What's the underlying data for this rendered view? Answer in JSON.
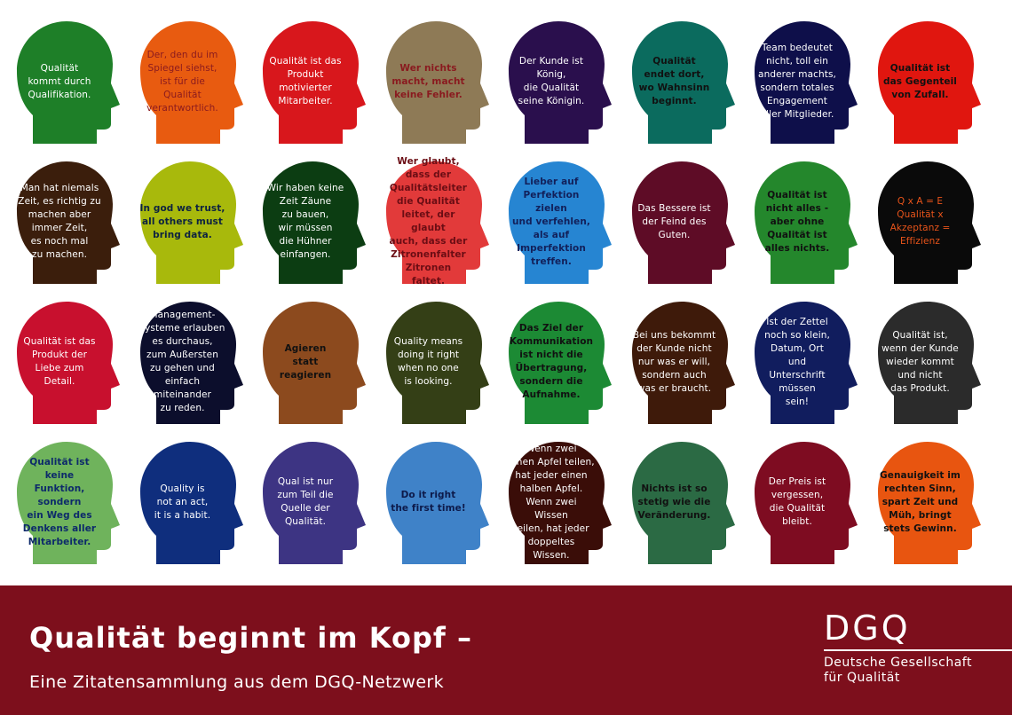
{
  "heads": [
    {
      "text": "Qualität\nkommt durch\nQualifikation.",
      "bg": "#1e7f28",
      "fg": "#ffffff",
      "bold": false
    },
    {
      "text": "Der, den du im\nSpiegel siehst,\nist für die\nQualität\nverantwortlich.",
      "bg": "#e85b10",
      "fg": "#8a1a1f",
      "bold": false
    },
    {
      "text": "Qualität ist das\nProdukt\nmotivierter\nMitarbeiter.",
      "bg": "#d8171c",
      "fg": "#ffffff",
      "bold": false
    },
    {
      "text": "Wer nichts\nmacht, macht\nkeine Fehler.",
      "bg": "#8e7a56",
      "fg": "#8a1a1f",
      "bold": true
    },
    {
      "text": "Der Kunde ist\nKönig,\ndie Qualität\nseine Königin.",
      "bg": "#2a0f4d",
      "fg": "#ffffff",
      "bold": false
    },
    {
      "text": "Qualität\nendet dort,\nwo Wahnsinn\nbeginnt.",
      "bg": "#0b6b5e",
      "fg": "#111111",
      "bold": true
    },
    {
      "text": "Team bedeutet\nnicht, toll ein\nanderer machts,\nsondern totales\nEngagement\naller Mitglieder.",
      "bg": "#0e0f4a",
      "fg": "#ffffff",
      "bold": false
    },
    {
      "text": "Qualität ist\ndas Gegenteil\nvon Zufall.",
      "bg": "#e0160f",
      "fg": "#111111",
      "bold": true
    },
    {
      "text": "Man hat niemals\nZeit, es richtig zu\nmachen aber\nimmer Zeit,\nes noch mal\nzu machen.",
      "bg": "#3b1e0c",
      "fg": "#ffffff",
      "bold": false
    },
    {
      "text": "In god we trust,\nall others must\nbring data.",
      "bg": "#a8b90c",
      "fg": "#0d2240",
      "bold": true
    },
    {
      "text": "Wir haben keine\nZeit Zäune\nzu bauen,\nwir müssen\ndie Hühner\neinfangen.",
      "bg": "#0c3d12",
      "fg": "#ffffff",
      "bold": false
    },
    {
      "text": "Wer glaubt,\ndass der\nQualitätsleiter\ndie Qualität\nleitet, der glaubt\nauch, dass der\nZitronenfalter\nZitronen\nfaltet.",
      "bg": "#e23a3a",
      "fg": "#6b0d14",
      "bold": true
    },
    {
      "text": "Lieber auf\nPerfektion zielen\nund verfehlen,\nals auf\nImperfektion\ntreffen.",
      "bg": "#2685d2",
      "fg": "#12205a",
      "bold": true
    },
    {
      "text": "Das Bessere ist\nder Feind des\nGuten.",
      "bg": "#5e0c26",
      "fg": "#ffffff",
      "bold": false
    },
    {
      "text": "Qualität ist\nnicht alles -\naber ohne\nQualität ist\nalles nichts.",
      "bg": "#24872c",
      "fg": "#111111",
      "bold": true
    },
    {
      "text": "Q x A = E\nQualität x\nAkzeptanz =\nEffizienz",
      "bg": "#0a0a0a",
      "fg": "#e8541a",
      "bold": false
    },
    {
      "text": "Qualität ist das\nProdukt der\nLiebe zum\nDetail.",
      "bg": "#c8102e",
      "fg": "#ffffff",
      "bold": false
    },
    {
      "text": "Management-\nsysteme erlauben\nes durchaus,\nzum Außersten\nzu gehen und\neinfach\nmiteinander\nzu reden.",
      "bg": "#0c0e2c",
      "fg": "#ffffff",
      "bold": false
    },
    {
      "text": "Agieren\nstatt\nreagieren",
      "bg": "#8c4a1e",
      "fg": "#111111",
      "bold": true
    },
    {
      "text": "Quality means\ndoing it right\nwhen no one\nis looking.",
      "bg": "#343f16",
      "fg": "#ffffff",
      "bold": false
    },
    {
      "text": "Das Ziel der\nKommunikation\nist nicht die\nÜbertragung,\nsondern die\nAufnahme.",
      "bg": "#1c8a34",
      "fg": "#111111",
      "bold": true
    },
    {
      "text": "Bei uns bekommt\nder Kunde nicht\nnur was er will,\nsondern auch\nwas er braucht.",
      "bg": "#3e1a0a",
      "fg": "#ffffff",
      "bold": false
    },
    {
      "text": "Ist der Zettel\nnoch so klein,\nDatum, Ort\nund\nUnterschrift\nmüssen\nsein!",
      "bg": "#111d5e",
      "fg": "#ffffff",
      "bold": false
    },
    {
      "text": "Qualität ist,\nwenn der Kunde\nwieder kommt\nund nicht\ndas Produkt.",
      "bg": "#2b2b2b",
      "fg": "#ffffff",
      "bold": false
    },
    {
      "text": "Qualität ist keine\nFunktion, sondern\nein Weg des\nDenkens aller\nMitarbeiter.",
      "bg": "#6fb35c",
      "fg": "#0d2a6a",
      "bold": true
    },
    {
      "text": "Quality is\nnot an act,\nit is a habit.",
      "bg": "#0f2e7d",
      "fg": "#ffffff",
      "bold": false
    },
    {
      "text": "Qual ist nur\nzum Teil die\nQuelle der\nQualität.",
      "bg": "#3d3483",
      "fg": "#ffffff",
      "bold": false
    },
    {
      "text": "Do it right\nthe first time!",
      "bg": "#3f82c8",
      "fg": "#0d1a4a",
      "bold": true
    },
    {
      "text": "Wenn zwei\neinen Apfel teilen,\nhat jeder einen\nhalben Apfel.\nWenn zwei\nWissen\nteilen, hat jeder\ndoppeltes\nWissen.",
      "bg": "#3a0d08",
      "fg": "#ffffff",
      "bold": false
    },
    {
      "text": "Nichts ist so\nstetig wie die\nVeränderung.",
      "bg": "#2b6a44",
      "fg": "#111111",
      "bold": true
    },
    {
      "text": "Der Preis ist\nvergessen,\ndie Qualität\nbleibt.",
      "bg": "#7e0c21",
      "fg": "#ffffff",
      "bold": false
    },
    {
      "text": "Genauigkeit im\nrechten Sinn,\nspart Zeit und\nMüh, bringt\nstets Gewinn.",
      "bg": "#e85510",
      "fg": "#111111",
      "bold": true
    }
  ],
  "footer": {
    "title": "Qualität beginnt im Kopf –",
    "subtitle": "Eine Zitatensammlung aus dem DGQ-Netzwerk",
    "logo": "DGQ",
    "org_line1": "Deutsche Gesellschaft",
    "org_line2": "für Qualität",
    "bg": "#7d0f1c"
  }
}
